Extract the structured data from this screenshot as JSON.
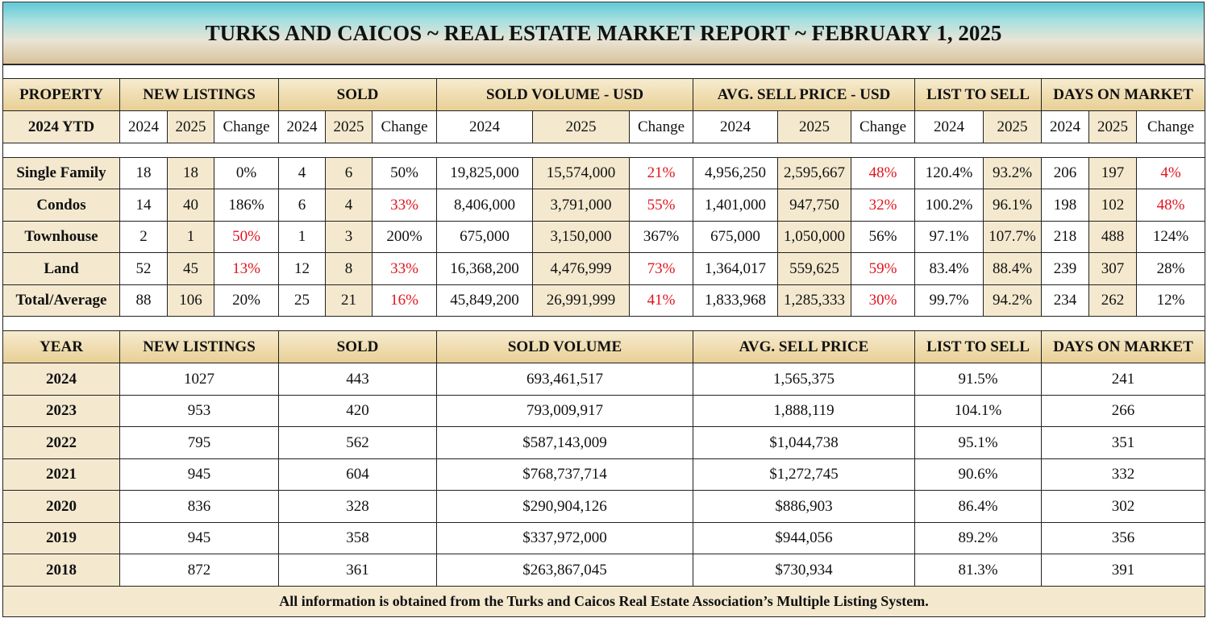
{
  "header": {
    "title": "TURKS AND CAICOS ~ REAL ESTATE MARKET REPORT ~ FEBRUARY 1, 2025"
  },
  "ytd_table": {
    "group_headers": [
      "PROPERTY",
      "NEW LISTINGS",
      "SOLD",
      "SOLD VOLUME - USD",
      "AVG. SELL PRICE - USD",
      "LIST TO SELL",
      "DAYS ON MARKET"
    ],
    "sub_headers": [
      "2024 YTD",
      "2024",
      "2025",
      "Change",
      "2024",
      "2025",
      "Change",
      "2024",
      "2025",
      "Change",
      "2024",
      "2025",
      "Change",
      "2024",
      "2025",
      "2024",
      "2025",
      "Change"
    ],
    "rows": [
      [
        "Single Family",
        "18",
        "18",
        "0%",
        "4",
        "6",
        "50%",
        "19,825,000",
        "15,574,000",
        "21%",
        "4,956,250",
        "2,595,667",
        "48%",
        "120.4%",
        "93.2%",
        "206",
        "197",
        "4%"
      ],
      [
        "Condos",
        "14",
        "40",
        "186%",
        "6",
        "4",
        "33%",
        "8,406,000",
        "3,791,000",
        "55%",
        "1,401,000",
        "947,750",
        "32%",
        "100.2%",
        "96.1%",
        "198",
        "102",
        "48%"
      ],
      [
        "Townhouse",
        "2",
        "1",
        "50%",
        "1",
        "3",
        "200%",
        "675,000",
        "3,150,000",
        "367%",
        "675,000",
        "1,050,000",
        "56%",
        "97.1%",
        "107.7%",
        "218",
        "488",
        "124%"
      ],
      [
        "Land",
        "52",
        "45",
        "13%",
        "12",
        "8",
        "33%",
        "16,368,200",
        "4,476,999",
        "73%",
        "1,364,017",
        "559,625",
        "59%",
        "83.4%",
        "88.4%",
        "239",
        "307",
        "28%"
      ],
      [
        "Total/Average",
        "88",
        "106",
        "20%",
        "25",
        "21",
        "16%",
        "45,849,200",
        "26,991,999",
        "41%",
        "1,833,968",
        "1,285,333",
        "30%",
        "99.7%",
        "94.2%",
        "234",
        "262",
        "12%"
      ]
    ],
    "highlight_color": "#e0141e",
    "highlighted": [
      [
        9,
        12,
        17
      ],
      [
        6,
        9,
        12,
        17
      ],
      [
        3
      ],
      [
        3,
        6,
        9,
        12
      ],
      [
        6,
        9,
        12
      ]
    ]
  },
  "history_table": {
    "headers": [
      "YEAR",
      "NEW LISTINGS",
      "SOLD",
      "SOLD VOLUME",
      "AVG. SELL PRICE",
      "LIST TO SELL",
      "DAYS ON MARKET"
    ],
    "rows": [
      [
        "2024",
        "1027",
        "443",
        "693,461,517",
        "1,565,375",
        "91.5%",
        "241"
      ],
      [
        "2023",
        "953",
        "420",
        "793,009,917",
        "1,888,119",
        "104.1%",
        "266"
      ],
      [
        "2022",
        "795",
        "562",
        "$587,143,009",
        "$1,044,738",
        "95.1%",
        "351"
      ],
      [
        "2021",
        "945",
        "604",
        "$768,737,714",
        "$1,272,745",
        "90.6%",
        "332"
      ],
      [
        "2020",
        "836",
        "328",
        "$290,904,126",
        "$886,903",
        "86.4%",
        "302"
      ],
      [
        "2019",
        "945",
        "358",
        "$337,972,000",
        "$944,056",
        "89.2%",
        "356"
      ],
      [
        "2018",
        "872",
        "361",
        "$263,867,045",
        "$730,934",
        "81.3%",
        "391"
      ]
    ]
  },
  "footer": {
    "text": "All information is obtained from the Turks and Caicos Real Estate Association’s Multiple Listing System."
  }
}
